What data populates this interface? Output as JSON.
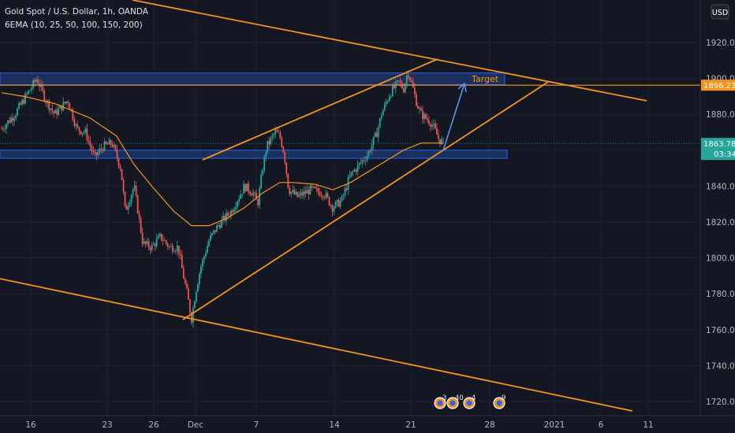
{
  "header": {
    "title": "Gold Spot / U.S. Dollar, 1h, OANDA",
    "indicator": "6EMA (10, 25, 50, 100, 150, 200)"
  },
  "currency_label": "USD",
  "colors": {
    "background": "#131722",
    "up": "#26a69a",
    "down": "#ef5350",
    "trendline": "#f7931a",
    "zone_fill": "#1e3a70",
    "zone_border": "#2962ff",
    "arrow": "#5b9bff",
    "price_tag": "#26a69a",
    "target_tag": "#f7931a"
  },
  "chart_data": {
    "type": "candlestick",
    "x_ticks": [
      "16",
      "23",
      "26",
      "Dec",
      "7",
      "14",
      "21",
      "28",
      "2021",
      "6",
      "11"
    ],
    "y_ticks": [
      "1720.000",
      "1740.000",
      "1760.000",
      "1780.000",
      "1800.000",
      "1820.000",
      "1840.000",
      "1860.000",
      "1880.000",
      "1900.000",
      "1920.000"
    ],
    "ylim": [
      1707,
      1941
    ],
    "price_path": [
      [
        0,
        1872
      ],
      [
        3,
        1880
      ],
      [
        6,
        1892
      ],
      [
        8,
        1900
      ],
      [
        10,
        1888
      ],
      [
        12,
        1880
      ],
      [
        15,
        1888
      ],
      [
        17,
        1872
      ],
      [
        19,
        1870
      ],
      [
        21,
        1856
      ],
      [
        23,
        1862
      ],
      [
        25,
        1864
      ],
      [
        27,
        1850
      ],
      [
        28,
        1826
      ],
      [
        30,
        1840
      ],
      [
        31,
        1824
      ],
      [
        32,
        1808
      ],
      [
        34,
        1806
      ],
      [
        36,
        1812
      ],
      [
        38,
        1806
      ],
      [
        40,
        1806
      ],
      [
        41,
        1792
      ],
      [
        42,
        1780
      ],
      [
        43,
        1766
      ],
      [
        44,
        1782
      ],
      [
        45,
        1794
      ],
      [
        47,
        1810
      ],
      [
        49,
        1818
      ],
      [
        52,
        1826
      ],
      [
        55,
        1840
      ],
      [
        57,
        1836
      ],
      [
        58,
        1830
      ],
      [
        59,
        1848
      ],
      [
        60,
        1862
      ],
      [
        62,
        1870
      ],
      [
        63,
        1868
      ],
      [
        64,
        1858
      ],
      [
        65,
        1838
      ],
      [
        67,
        1834
      ],
      [
        70,
        1838
      ],
      [
        73,
        1836
      ],
      [
        75,
        1828
      ],
      [
        77,
        1832
      ],
      [
        79,
        1846
      ],
      [
        81,
        1852
      ],
      [
        83,
        1858
      ],
      [
        85,
        1870
      ],
      [
        86,
        1880
      ],
      [
        88,
        1892
      ],
      [
        90,
        1898
      ],
      [
        91,
        1894
      ],
      [
        92,
        1904
      ],
      [
        93,
        1896
      ],
      [
        94,
        1886
      ],
      [
        95,
        1880
      ],
      [
        96,
        1878
      ],
      [
        97,
        1876
      ],
      [
        98,
        1872
      ],
      [
        99,
        1866
      ],
      [
        100,
        1864
      ]
    ],
    "ema_path": [
      [
        0,
        1892
      ],
      [
        5,
        1890
      ],
      [
        12,
        1886
      ],
      [
        20,
        1878
      ],
      [
        26,
        1868
      ],
      [
        30,
        1852
      ],
      [
        34,
        1840
      ],
      [
        39,
        1826
      ],
      [
        43,
        1818
      ],
      [
        47,
        1818
      ],
      [
        51,
        1822
      ],
      [
        55,
        1828
      ],
      [
        59,
        1836
      ],
      [
        63,
        1842
      ],
      [
        66,
        1842
      ],
      [
        71,
        1841
      ],
      [
        75,
        1838
      ],
      [
        79,
        1842
      ],
      [
        83,
        1848
      ],
      [
        87,
        1854
      ],
      [
        91,
        1860
      ],
      [
        95,
        1864
      ],
      [
        100,
        1864
      ]
    ],
    "last_price": "1863.785",
    "countdown": "03:34",
    "target_price": "1896.235",
    "target_label": "Target",
    "zones": [
      {
        "from": 1896.5,
        "to": 1903
      },
      {
        "from": 1855.5,
        "to": 1860
      }
    ],
    "event_badges": [
      "3",
      "40",
      "4",
      "9"
    ]
  }
}
